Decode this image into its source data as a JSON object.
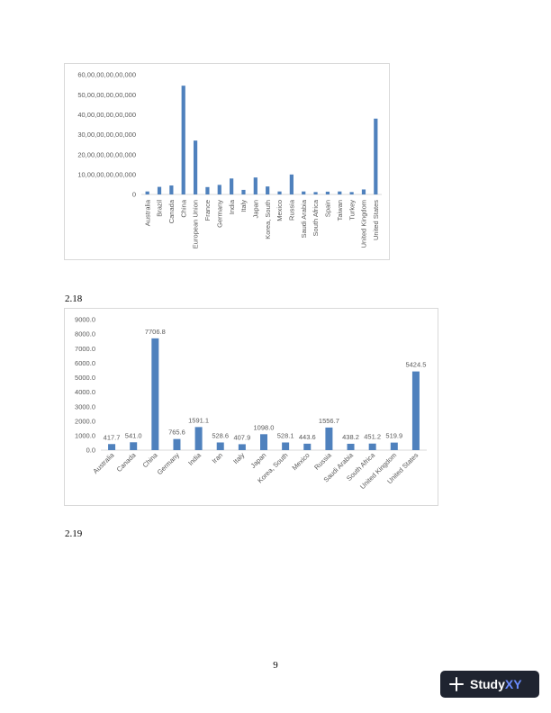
{
  "labels": {
    "section_218": "2.18",
    "section_219": "2.19",
    "page_number": "9"
  },
  "brand": {
    "name_main": "Study",
    "name_accent": "XY",
    "icon": "plus-icon",
    "background_color": "#1f2430",
    "accent_color": "#6b8cff"
  },
  "colors": {
    "bar": "#4f81bd",
    "axis": "#d9d9d9",
    "text": "#595959"
  },
  "chart_data": [
    {
      "type": "bar",
      "title": "",
      "xlabel": "",
      "ylabel": "",
      "ylim": [
        0,
        6000000000000
      ],
      "ytick_values": [
        0,
        1000000000000,
        2000000000000,
        3000000000000,
        4000000000000,
        5000000000000,
        6000000000000
      ],
      "ytick_labels": [
        "0",
        "10,00,00,00,00,000",
        "20,00,00,00,00,000",
        "30,00,00,00,00,000",
        "40,00,00,00,00,000",
        "50,00,00,00,00,000",
        "60,00,00,00,00,000"
      ],
      "grid": false,
      "legend": "none",
      "categories": [
        "Australia",
        "Brazil",
        "Canada",
        "China",
        "European Union",
        "France",
        "Germany",
        "India",
        "Italy",
        "Japan",
        "Korea, South",
        "Mexico",
        "Russia",
        "Saudi Arabia",
        "South Africa",
        "Spain",
        "Taiwan",
        "Turkey",
        "United Kingdom",
        "United States"
      ],
      "values": [
        150000000000,
        380000000000,
        450000000000,
        5450000000000,
        2700000000000,
        370000000000,
        480000000000,
        800000000000,
        230000000000,
        850000000000,
        400000000000,
        150000000000,
        1000000000000,
        150000000000,
        120000000000,
        140000000000,
        150000000000,
        120000000000,
        250000000000,
        3800000000000
      ]
    },
    {
      "type": "bar",
      "title": "",
      "xlabel": "",
      "ylabel": "",
      "ylim": [
        0,
        9000
      ],
      "ytick_values": [
        0,
        1000,
        2000,
        3000,
        4000,
        5000,
        6000,
        7000,
        8000,
        9000
      ],
      "ytick_labels": [
        "0.0",
        "1000.0",
        "2000.0",
        "3000.0",
        "4000.0",
        "5000.0",
        "6000.0",
        "7000.0",
        "8000.0",
        "9000.0"
      ],
      "grid": false,
      "legend": "none",
      "categories": [
        "Australia",
        "Canada",
        "China",
        "Germany",
        "India",
        "Iran",
        "Italy",
        "Japan",
        "Korea, South",
        "Mexico",
        "Russia",
        "Saudi Arabia",
        "South Africa",
        "United Kingdom",
        "United States"
      ],
      "values": [
        417.7,
        541.0,
        7706.8,
        765.6,
        1591.1,
        528.6,
        407.9,
        1098.0,
        528.1,
        443.6,
        1556.7,
        438.2,
        451.2,
        519.9,
        5424.5
      ],
      "data_labels": [
        "417.7",
        "541.0",
        "7706.8",
        "765.6",
        "1591.1",
        "528.6",
        "407.9",
        "1098.0",
        "528.1",
        "443.6",
        "1556.7",
        "438.2",
        "451.2",
        "519.9",
        "5424.5"
      ]
    }
  ]
}
